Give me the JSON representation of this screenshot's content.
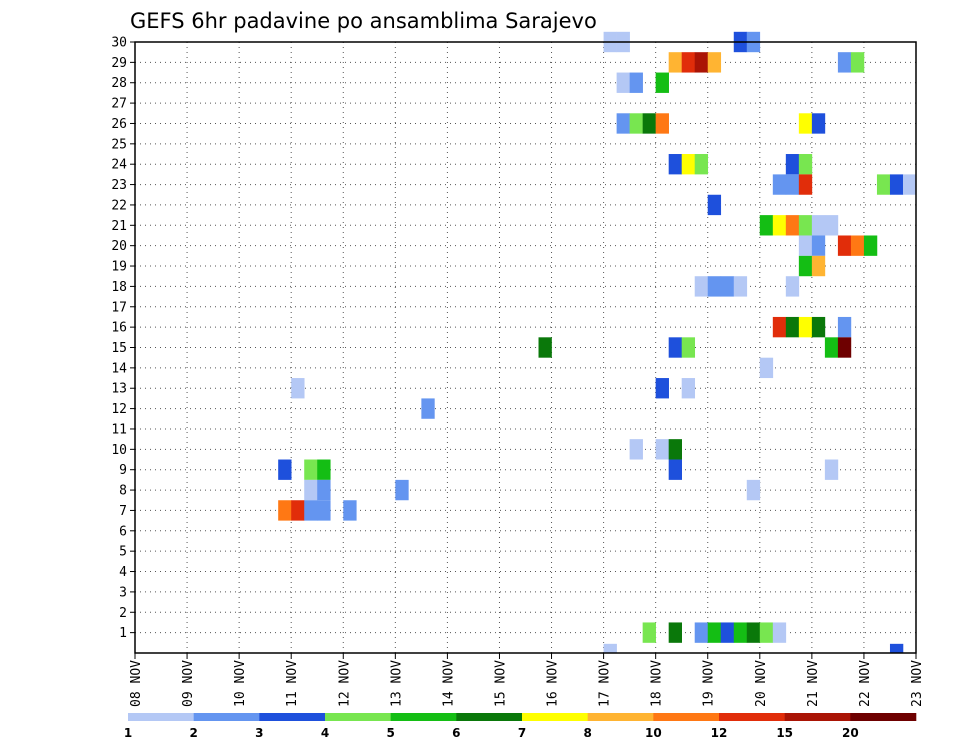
{
  "chart_data": {
    "type": "heatmap",
    "title": "GEFS 6hr padavine po ansamblima Sarajevo",
    "x_labels": [
      "08 NOV",
      "09 NOV",
      "10 NOV",
      "11 NOV",
      "12 NOV",
      "13 NOV",
      "14 NOV",
      "15 NOV",
      "16 NOV",
      "17 NOV",
      "18 NOV",
      "19 NOV",
      "20 NOV",
      "21 NOV",
      "22 NOV",
      "23 NOV"
    ],
    "x_range_days": [
      0,
      15
    ],
    "y_labels": [
      "1",
      "2",
      "3",
      "4",
      "5",
      "6",
      "7",
      "8",
      "9",
      "10",
      "11",
      "12",
      "13",
      "14",
      "15",
      "16",
      "17",
      "18",
      "19",
      "20",
      "21",
      "22",
      "23",
      "24",
      "25",
      "26",
      "27",
      "28",
      "29",
      "30"
    ],
    "y_range": [
      0,
      30
    ],
    "time_step_hours": 6,
    "grid": true,
    "legend": {
      "position": "bottom",
      "bounds": [
        "1",
        "2",
        "3",
        "4",
        "5",
        "6",
        "7",
        "8",
        "10",
        "12",
        "15",
        "20"
      ],
      "colors": [
        "#b4c8f5",
        "#6495f0",
        "#1e50dc",
        "#78e650",
        "#14be14",
        "#0a780a",
        "#ffff00",
        "#ffb432",
        "#ff7814",
        "#e12d0a",
        "#aa1405",
        "#6e0000"
      ]
    },
    "cells": [
      {
        "member": 30,
        "day": 9.0,
        "cat": 0
      },
      {
        "member": 30,
        "day": 9.25,
        "cat": 0
      },
      {
        "member": 30,
        "day": 11.5,
        "cat": 2
      },
      {
        "member": 30,
        "day": 11.75,
        "cat": 1
      },
      {
        "member": 29,
        "day": 10.25,
        "cat": 7
      },
      {
        "member": 29,
        "day": 10.5,
        "cat": 9
      },
      {
        "member": 29,
        "day": 10.75,
        "cat": 10
      },
      {
        "member": 29,
        "day": 11.0,
        "cat": 7
      },
      {
        "member": 29,
        "day": 13.5,
        "cat": 1
      },
      {
        "member": 29,
        "day": 13.75,
        "cat": 3
      },
      {
        "member": 28,
        "day": 9.25,
        "cat": 0
      },
      {
        "member": 28,
        "day": 9.5,
        "cat": 1
      },
      {
        "member": 28,
        "day": 10.0,
        "cat": 4
      },
      {
        "member": 26,
        "day": 9.25,
        "cat": 1
      },
      {
        "member": 26,
        "day": 9.5,
        "cat": 3
      },
      {
        "member": 26,
        "day": 9.75,
        "cat": 5
      },
      {
        "member": 26,
        "day": 10.0,
        "cat": 8
      },
      {
        "member": 26,
        "day": 12.75,
        "cat": 6
      },
      {
        "member": 26,
        "day": 13.0,
        "cat": 2
      },
      {
        "member": 24,
        "day": 10.25,
        "cat": 2
      },
      {
        "member": 24,
        "day": 10.5,
        "cat": 6
      },
      {
        "member": 24,
        "day": 10.75,
        "cat": 3
      },
      {
        "member": 24,
        "day": 12.5,
        "cat": 2
      },
      {
        "member": 24,
        "day": 12.75,
        "cat": 3
      },
      {
        "member": 23,
        "day": 12.25,
        "cat": 1
      },
      {
        "member": 23,
        "day": 12.5,
        "cat": 1
      },
      {
        "member": 23,
        "day": 12.75,
        "cat": 9
      },
      {
        "member": 23,
        "day": 14.25,
        "cat": 3
      },
      {
        "member": 23,
        "day": 14.5,
        "cat": 2
      },
      {
        "member": 23,
        "day": 14.75,
        "cat": 0
      },
      {
        "member": 22,
        "day": 11.0,
        "cat": 2
      },
      {
        "member": 21,
        "day": 12.0,
        "cat": 4
      },
      {
        "member": 21,
        "day": 12.25,
        "cat": 6
      },
      {
        "member": 21,
        "day": 12.5,
        "cat": 8
      },
      {
        "member": 21,
        "day": 12.75,
        "cat": 3
      },
      {
        "member": 21,
        "day": 13.0,
        "cat": 0
      },
      {
        "member": 21,
        "day": 13.25,
        "cat": 0
      },
      {
        "member": 20,
        "day": 12.75,
        "cat": 0
      },
      {
        "member": 20,
        "day": 13.0,
        "cat": 1
      },
      {
        "member": 20,
        "day": 13.5,
        "cat": 9
      },
      {
        "member": 20,
        "day": 13.75,
        "cat": 8
      },
      {
        "member": 20,
        "day": 14.0,
        "cat": 4
      },
      {
        "member": 19,
        "day": 12.75,
        "cat": 4
      },
      {
        "member": 19,
        "day": 13.0,
        "cat": 7
      },
      {
        "member": 18,
        "day": 10.75,
        "cat": 0
      },
      {
        "member": 18,
        "day": 11.0,
        "cat": 1
      },
      {
        "member": 18,
        "day": 11.25,
        "cat": 1
      },
      {
        "member": 18,
        "day": 11.5,
        "cat": 0
      },
      {
        "member": 18,
        "day": 12.5,
        "cat": 0
      },
      {
        "member": 16,
        "day": 12.25,
        "cat": 9
      },
      {
        "member": 16,
        "day": 12.5,
        "cat": 5
      },
      {
        "member": 16,
        "day": 12.75,
        "cat": 6
      },
      {
        "member": 16,
        "day": 13.0,
        "cat": 5
      },
      {
        "member": 16,
        "day": 13.5,
        "cat": 1
      },
      {
        "member": 15,
        "day": 7.75,
        "cat": 5
      },
      {
        "member": 15,
        "day": 10.25,
        "cat": 2
      },
      {
        "member": 15,
        "day": 10.5,
        "cat": 3
      },
      {
        "member": 15,
        "day": 13.25,
        "cat": 4
      },
      {
        "member": 15,
        "day": 13.5,
        "cat": 11
      },
      {
        "member": 14,
        "day": 12.0,
        "cat": 0
      },
      {
        "member": 13,
        "day": 3.0,
        "cat": 0
      },
      {
        "member": 13,
        "day": 10.0,
        "cat": 2
      },
      {
        "member": 13,
        "day": 10.5,
        "cat": 0
      },
      {
        "member": 12,
        "day": 5.5,
        "cat": 1
      },
      {
        "member": 10,
        "day": 9.5,
        "cat": 0
      },
      {
        "member": 10,
        "day": 10.0,
        "cat": 0
      },
      {
        "member": 10,
        "day": 10.25,
        "cat": 5
      },
      {
        "member": 9,
        "day": 2.75,
        "cat": 2
      },
      {
        "member": 9,
        "day": 3.25,
        "cat": 3
      },
      {
        "member": 9,
        "day": 3.5,
        "cat": 4
      },
      {
        "member": 9,
        "day": 10.25,
        "cat": 2
      },
      {
        "member": 9,
        "day": 13.25,
        "cat": 0
      },
      {
        "member": 8,
        "day": 3.25,
        "cat": 0
      },
      {
        "member": 8,
        "day": 3.5,
        "cat": 1
      },
      {
        "member": 8,
        "day": 5.0,
        "cat": 1
      },
      {
        "member": 8,
        "day": 11.75,
        "cat": 0
      },
      {
        "member": 7,
        "day": 2.75,
        "cat": 8
      },
      {
        "member": 7,
        "day": 3.0,
        "cat": 9
      },
      {
        "member": 7,
        "day": 3.25,
        "cat": 1
      },
      {
        "member": 7,
        "day": 3.5,
        "cat": 1
      },
      {
        "member": 7,
        "day": 4.0,
        "cat": 1
      },
      {
        "member": 1,
        "day": 9.75,
        "cat": 3
      },
      {
        "member": 1,
        "day": 10.25,
        "cat": 5
      },
      {
        "member": 1,
        "day": 10.75,
        "cat": 1
      },
      {
        "member": 1,
        "day": 11.0,
        "cat": 4
      },
      {
        "member": 1,
        "day": 11.25,
        "cat": 2
      },
      {
        "member": 1,
        "day": 11.5,
        "cat": 4
      },
      {
        "member": 1,
        "day": 11.75,
        "cat": 5
      },
      {
        "member": 1,
        "day": 12.0,
        "cat": 3
      },
      {
        "member": 1,
        "day": 12.25,
        "cat": 0
      },
      {
        "member": 0,
        "day": 9.0,
        "cat": 0
      },
      {
        "member": 0,
        "day": 14.5,
        "cat": 2
      }
    ]
  }
}
